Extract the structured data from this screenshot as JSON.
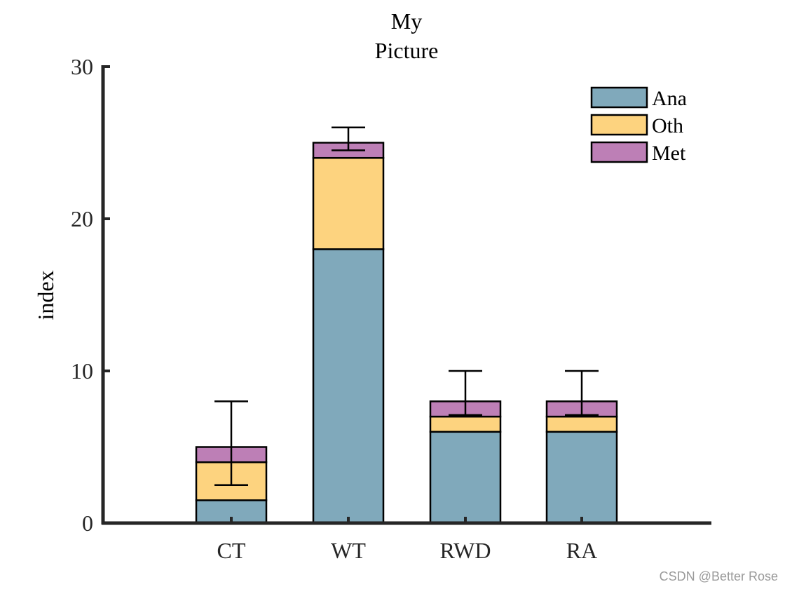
{
  "chart_data": {
    "type": "bar",
    "stacked": true,
    "title_lines": [
      "My",
      "Picture"
    ],
    "xlabel": "",
    "ylabel": "index",
    "ylim": [
      0,
      30
    ],
    "yticks": [
      0,
      10,
      20,
      30
    ],
    "categories": [
      "CT",
      "WT",
      "RWD",
      "RA"
    ],
    "series": [
      {
        "name": "Ana",
        "color": "#80a9bb",
        "values": [
          1.5,
          18,
          6,
          6
        ]
      },
      {
        "name": "Oth",
        "color": "#fdd37f",
        "values": [
          2.5,
          6,
          1,
          1
        ]
      },
      {
        "name": "Met",
        "color": "#bd7fb6",
        "values": [
          1,
          1,
          1,
          1
        ]
      }
    ],
    "error_bars": [
      {
        "center": 5,
        "lower": 2.5,
        "upper": 8
      },
      {
        "center": 25,
        "lower": 24.5,
        "upper": 26
      },
      {
        "center": 8,
        "lower": 7.1,
        "upper": 10
      },
      {
        "center": 8,
        "lower": 7.1,
        "upper": 10
      }
    ],
    "legend_position": "top-right",
    "grid": false
  },
  "watermark": "CSDN @Better Rose"
}
